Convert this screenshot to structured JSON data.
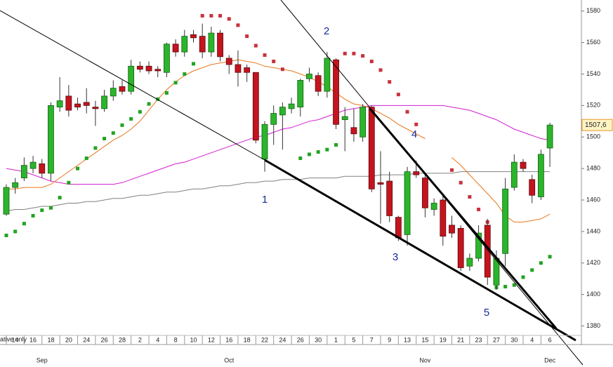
{
  "chart_data": {
    "type": "candlestick",
    "categories": [
      null,
      "14",
      null,
      "16",
      null,
      "18",
      null,
      "20",
      null,
      "24",
      null,
      "26",
      null,
      "28",
      null,
      "2",
      null,
      "4",
      null,
      "8",
      null,
      "10",
      null,
      "12",
      null,
      "16",
      null,
      "18",
      null,
      "22",
      null,
      "24",
      null,
      "26",
      null,
      "30",
      null,
      "1",
      null,
      "5",
      null,
      "7",
      null,
      "9",
      null,
      "13",
      null,
      "15",
      null,
      "19",
      null,
      "21",
      null,
      "23",
      null,
      "27",
      null,
      "30",
      null,
      "4",
      null,
      "6"
    ],
    "months": [
      null,
      null,
      null,
      null,
      "Sep",
      null,
      null,
      null,
      null,
      null,
      null,
      null,
      null,
      null,
      null,
      null,
      null,
      null,
      null,
      null,
      null,
      null,
      null,
      null,
      null,
      "Oct",
      null,
      null,
      null,
      null,
      null,
      null,
      null,
      null,
      null,
      null,
      null,
      null,
      null,
      null,
      null,
      null,
      null,
      null,
      null,
      null,
      null,
      "Nov",
      null,
      null,
      null,
      null,
      null,
      null,
      null,
      null,
      null,
      null,
      null,
      null,
      null,
      "Dec"
    ],
    "open": [
      1451,
      1468,
      1474,
      1480,
      1483,
      1477,
      1519,
      1526,
      1521,
      1522,
      1519,
      1518,
      1526,
      1532,
      1529,
      1545,
      1545,
      1543,
      1541,
      1559,
      1554,
      1565,
      1564,
      1554,
      1566,
      1550,
      1546,
      1544,
      1541,
      1486,
      1508,
      1514,
      1518,
      1519,
      1537,
      1539,
      1529,
      1549,
      1511,
      1506,
      1500,
      1519,
      1471,
      1472,
      1449,
      1438,
      1478,
      1474,
      1454,
      1460,
      1444,
      1442,
      1418,
      1423,
      1444,
      1406,
      1426,
      1468,
      1484,
      1473,
      1462,
      1493
    ],
    "high": [
      1470,
      1474,
      1487,
      1488,
      1486,
      1522,
      1538,
      1533,
      1525,
      1531,
      1523,
      1530,
      1536,
      1536,
      1549,
      1548,
      1548,
      1545,
      1560,
      1562,
      1568,
      1568,
      1572,
      1570,
      1568,
      1552,
      1555,
      1546,
      1541,
      1510,
      1520,
      1522,
      1525,
      1537,
      1544,
      1541,
      1554,
      1550,
      1519,
      1518,
      1521,
      1520,
      1491,
      1478,
      1450,
      1481,
      1485,
      1477,
      1461,
      1463,
      1450,
      1444,
      1426,
      1444,
      1448,
      1428,
      1474,
      1489,
      1486,
      1476,
      1492,
      1509
    ],
    "low": [
      1450,
      1464,
      1472,
      1477,
      1474,
      1472,
      1516,
      1513,
      1517,
      1515,
      1507,
      1516,
      1523,
      1527,
      1527,
      1541,
      1540,
      1538,
      1538,
      1551,
      1551,
      1560,
      1550,
      1551,
      1548,
      1540,
      1532,
      1535,
      1496,
      1478,
      1495,
      1492,
      1515,
      1513,
      1535,
      1526,
      1525,
      1505,
      1491,
      1497,
      1497,
      1465,
      1445,
      1446,
      1434,
      1431,
      1474,
      1449,
      1450,
      1431,
      1436,
      1415,
      1415,
      1421,
      1406,
      1403,
      1418,
      1466,
      1478,
      1458,
      1460,
      1481
    ],
    "close": [
      1468,
      1471,
      1482,
      1484,
      1477,
      1520,
      1523,
      1517,
      1519,
      1520,
      1518,
      1526,
      1531,
      1529,
      1545,
      1543,
      1542,
      1542,
      1559,
      1554,
      1564,
      1563,
      1554,
      1566,
      1551,
      1546,
      1541,
      1541,
      1498,
      1508,
      1515,
      1519,
      1521,
      1536,
      1540,
      1529,
      1550,
      1508,
      1513,
      1502,
      1519,
      1467,
      1470,
      1450,
      1436,
      1478,
      1476,
      1455,
      1458,
      1437,
      1439,
      1417,
      1423,
      1439,
      1411,
      1423,
      1467,
      1484,
      1480,
      1463,
      1489,
      1507.6
    ],
    "up_color": "#2bb52b",
    "down_color": "#c4141e",
    "last_price_label": "1507,6",
    "indicators": [
      {
        "style": "line",
        "color": "#808080",
        "values": [
          1453,
          1454,
          1454,
          1455,
          1456,
          1456,
          1457,
          1458,
          1458,
          1459,
          1459,
          1460,
          1461,
          1461,
          1462,
          1463,
          1463,
          1464,
          1465,
          1465,
          1466,
          1467,
          1467,
          1468,
          1469,
          1469,
          1470,
          1471,
          1471,
          1472,
          1472,
          1473,
          1473,
          1473,
          1474,
          1474,
          1474,
          1474,
          1475,
          1475,
          1475,
          1475,
          1476,
          1476,
          1476,
          1476,
          1477,
          1477,
          1477,
          1477,
          1477,
          1478,
          1478,
          1478,
          1478,
          1478,
          1478,
          1478,
          1478,
          1478,
          1478,
          1478
        ]
      },
      {
        "style": "line",
        "color": "#d21fd2",
        "values": [
          1480,
          1479,
          1478,
          1476,
          1474,
          1472,
          1471,
          1470,
          1470,
          1470,
          1470,
          1470,
          1470,
          1471,
          1473,
          1475,
          1477,
          1479,
          1481,
          1483,
          1484,
          1486,
          1488,
          1490,
          1492,
          1494,
          1496,
          1498,
          1500,
          1501,
          1503,
          1505,
          1506,
          1508,
          1510,
          1511,
          1513,
          1515,
          1517,
          1518,
          1519,
          1520,
          1520,
          1520,
          1520,
          1520,
          1520,
          1520,
          1520,
          1520,
          1519,
          1518,
          1517,
          1515,
          1513,
          1511,
          1508,
          1505,
          1503,
          1501,
          1499,
          1498
        ]
      },
      {
        "style": "line",
        "color": "#e8761a",
        "values": [
          1467,
          1467,
          1468,
          1468,
          1468,
          1470,
          1474,
          1478,
          1482,
          1486,
          1490,
          1494,
          1498,
          1501,
          1505,
          1510,
          1517,
          1524,
          1530,
          1535,
          1539,
          1542,
          1544,
          1546,
          1547,
          1548,
          1549,
          1548,
          1547,
          1545,
          1544,
          1543,
          1542,
          1540,
          1538,
          1535,
          1532,
          1528,
          1524,
          1521,
          1520,
          1518,
          1515,
          1512,
          1508,
          1505,
          1502,
          1499,
          null,
          null,
          1487,
          1482,
          1476,
          1470,
          1464,
          1458,
          1450,
          1446,
          1446,
          1447,
          1448,
          1451
        ]
      },
      {
        "style": "dots",
        "color": "#22a322",
        "values": [
          1437.5,
          1440,
          1445,
          1450,
          1453.5,
          1455,
          1461.5,
          1471,
          1480,
          1486.5,
          1493,
          1499,
          1502.5,
          1507.5,
          1511.5,
          1516,
          1521,
          1524,
          1528,
          1534.5,
          1540,
          1546.5,
          null,
          null,
          null,
          null,
          null,
          null,
          null,
          null,
          null,
          null,
          null,
          1486.5,
          1489,
          1490.5,
          1492,
          1495,
          null,
          null,
          null,
          null,
          null,
          null,
          null,
          null,
          null,
          null,
          null,
          null,
          null,
          null,
          null,
          null,
          null,
          1404.5,
          1405,
          1406,
          1411,
          1415.5,
          1420,
          1424
        ]
      },
      {
        "style": "dots",
        "color": "#c8323c",
        "values": [
          null,
          null,
          null,
          null,
          null,
          null,
          null,
          null,
          null,
          null,
          null,
          null,
          null,
          null,
          null,
          null,
          null,
          null,
          null,
          null,
          null,
          null,
          1577,
          1577,
          1577,
          1575,
          1571,
          1564,
          1558,
          1552,
          1548,
          1543,
          null,
          null,
          null,
          null,
          null,
          null,
          1553,
          1553,
          1551.5,
          1548,
          1542.5,
          1535,
          1527,
          1516,
          1508,
          null,
          null,
          null,
          1479,
          1471,
          1462,
          1454,
          1446,
          null,
          null,
          null,
          null,
          null,
          null,
          null
        ]
      }
    ],
    "annotations": [
      "1",
      "2",
      "3",
      "4",
      "5"
    ],
    "footnote": "ative only",
    "ylim": [
      1374,
      1587
    ],
    "yticks": [
      1380,
      1400,
      1420,
      1440,
      1460,
      1480,
      1500,
      1520,
      1540,
      1560,
      1580
    ],
    "grid": false
  }
}
